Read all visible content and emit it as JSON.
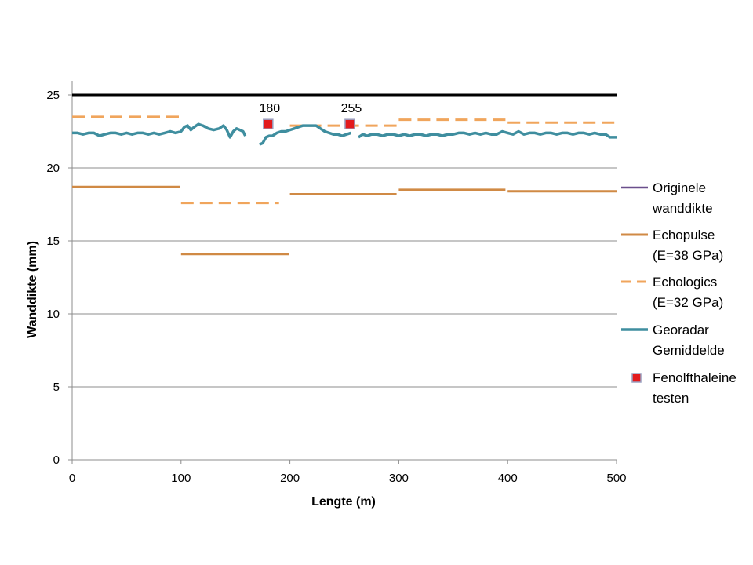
{
  "chart_data": {
    "type": "line",
    "xlabel": "Lengte (m)",
    "ylabel": "Wanddikte (mm)",
    "xlim": [
      0,
      500
    ],
    "ylim": [
      0,
      26
    ],
    "xticks": [
      0,
      100,
      200,
      300,
      400,
      500
    ],
    "yticks": [
      0,
      5,
      10,
      15,
      20,
      25
    ],
    "grid": "horizontal",
    "legend_position": "right",
    "colors": {
      "original": "#000000",
      "original_legend": "#6a4f8c",
      "echopulse": "#d08a45",
      "echologics": "#f0a55c",
      "georadar": "#3f8e9f",
      "fenolftaleine_fill": "#e31a1c",
      "fenolftaleine_border": "#9aa0c0"
    },
    "series": [
      {
        "name": "Originele wanddikte",
        "legend_lines": [
          "Originele",
          "wanddikte"
        ],
        "style": "solid",
        "segments": [
          [
            [
              0,
              25
            ],
            [
              500,
              25
            ]
          ]
        ]
      },
      {
        "name": "Echopulse (E=38 GPa)",
        "legend_lines": [
          "Echopulse",
          "(E=38 GPa)"
        ],
        "style": "solid",
        "segments": [
          [
            [
              0,
              18.7
            ],
            [
              99,
              18.7
            ]
          ],
          [
            [
              100,
              14.1
            ],
            [
              199,
              14.1
            ]
          ],
          [
            [
              200,
              18.2
            ],
            [
              298,
              18.2
            ]
          ],
          [
            [
              300,
              18.5
            ],
            [
              398,
              18.5
            ]
          ],
          [
            [
              400,
              18.4
            ],
            [
              500,
              18.4
            ]
          ]
        ]
      },
      {
        "name": "Echologics (E=32 GPa)",
        "legend_lines": [
          "Echologics",
          "(E=32 GPa)"
        ],
        "style": "dashed",
        "segments": [
          [
            [
              0,
              23.5
            ],
            [
              99,
              23.5
            ]
          ],
          [
            [
              100,
              17.6
            ],
            [
              190,
              17.6
            ]
          ],
          [
            [
              200,
              22.9
            ],
            [
              298,
              22.9
            ]
          ],
          [
            [
              300,
              23.3
            ],
            [
              398,
              23.3
            ]
          ],
          [
            [
              400,
              23.1
            ],
            [
              500,
              23.1
            ]
          ]
        ]
      },
      {
        "name": "Georadar Gemiddelde",
        "legend_lines": [
          "Georadar",
          "Gemiddelde"
        ],
        "style": "solid",
        "segments": [
          [
            [
              0,
              22.4
            ],
            [
              5,
              22.4
            ],
            [
              10,
              22.3
            ],
            [
              15,
              22.4
            ],
            [
              20,
              22.4
            ],
            [
              25,
              22.2
            ],
            [
              30,
              22.3
            ],
            [
              35,
              22.4
            ],
            [
              40,
              22.4
            ],
            [
              45,
              22.3
            ],
            [
              50,
              22.4
            ],
            [
              55,
              22.3
            ],
            [
              60,
              22.4
            ],
            [
              65,
              22.4
            ],
            [
              70,
              22.3
            ],
            [
              75,
              22.4
            ],
            [
              80,
              22.3
            ],
            [
              85,
              22.4
            ],
            [
              90,
              22.5
            ],
            [
              95,
              22.4
            ],
            [
              100,
              22.5
            ],
            [
              103,
              22.8
            ],
            [
              106,
              22.9
            ],
            [
              109,
              22.6
            ],
            [
              112,
              22.8
            ],
            [
              116,
              23.0
            ],
            [
              120,
              22.9
            ],
            [
              125,
              22.7
            ],
            [
              130,
              22.6
            ],
            [
              135,
              22.7
            ],
            [
              139,
              22.9
            ],
            [
              142,
              22.6
            ],
            [
              145,
              22.1
            ],
            [
              148,
              22.5
            ],
            [
              151,
              22.7
            ],
            [
              154,
              22.6
            ],
            [
              157,
              22.5
            ],
            [
              159,
              22.2
            ]
          ],
          [
            [
              172,
              21.6
            ],
            [
              175,
              21.7
            ],
            [
              178,
              22.1
            ],
            [
              181,
              22.2
            ],
            [
              184,
              22.2
            ],
            [
              188,
              22.4
            ],
            [
              192,
              22.5
            ],
            [
              196,
              22.5
            ],
            [
              200,
              22.6
            ],
            [
              204,
              22.7
            ],
            [
              208,
              22.8
            ],
            [
              212,
              22.9
            ],
            [
              216,
              22.9
            ],
            [
              220,
              22.9
            ],
            [
              224,
              22.9
            ],
            [
              228,
              22.7
            ],
            [
              232,
              22.5
            ],
            [
              236,
              22.4
            ],
            [
              240,
              22.3
            ],
            [
              244,
              22.3
            ],
            [
              248,
              22.2
            ],
            [
              252,
              22.3
            ],
            [
              256,
              22.4
            ]
          ],
          [
            [
              263,
              22.1
            ],
            [
              267,
              22.3
            ],
            [
              271,
              22.2
            ],
            [
              275,
              22.3
            ],
            [
              280,
              22.3
            ],
            [
              285,
              22.2
            ],
            [
              290,
              22.3
            ],
            [
              295,
              22.3
            ],
            [
              300,
              22.2
            ],
            [
              305,
              22.3
            ],
            [
              310,
              22.2
            ],
            [
              315,
              22.3
            ],
            [
              320,
              22.3
            ],
            [
              325,
              22.2
            ],
            [
              330,
              22.3
            ],
            [
              335,
              22.3
            ],
            [
              340,
              22.2
            ],
            [
              345,
              22.3
            ],
            [
              350,
              22.3
            ],
            [
              355,
              22.4
            ],
            [
              360,
              22.4
            ],
            [
              365,
              22.3
            ],
            [
              370,
              22.4
            ],
            [
              375,
              22.3
            ],
            [
              380,
              22.4
            ],
            [
              385,
              22.3
            ],
            [
              390,
              22.3
            ],
            [
              395,
              22.5
            ],
            [
              400,
              22.4
            ],
            [
              405,
              22.3
            ],
            [
              410,
              22.5
            ],
            [
              415,
              22.3
            ],
            [
              420,
              22.4
            ],
            [
              425,
              22.4
            ],
            [
              430,
              22.3
            ],
            [
              435,
              22.4
            ],
            [
              440,
              22.4
            ],
            [
              445,
              22.3
            ],
            [
              450,
              22.4
            ],
            [
              455,
              22.4
            ],
            [
              460,
              22.3
            ],
            [
              465,
              22.4
            ],
            [
              470,
              22.4
            ],
            [
              475,
              22.3
            ],
            [
              480,
              22.4
            ],
            [
              485,
              22.3
            ],
            [
              490,
              22.3
            ],
            [
              494,
              22.1
            ],
            [
              498,
              22.1
            ],
            [
              500,
              22.1
            ]
          ]
        ]
      }
    ],
    "markers": {
      "name": "Fenolfthaleine testen",
      "legend_lines": [
        "Fenolfthaleine",
        "testen"
      ],
      "points": [
        {
          "x": 180,
          "y": 23.0,
          "label": "180"
        },
        {
          "x": 255,
          "y": 23.0,
          "label": "255"
        }
      ]
    }
  }
}
